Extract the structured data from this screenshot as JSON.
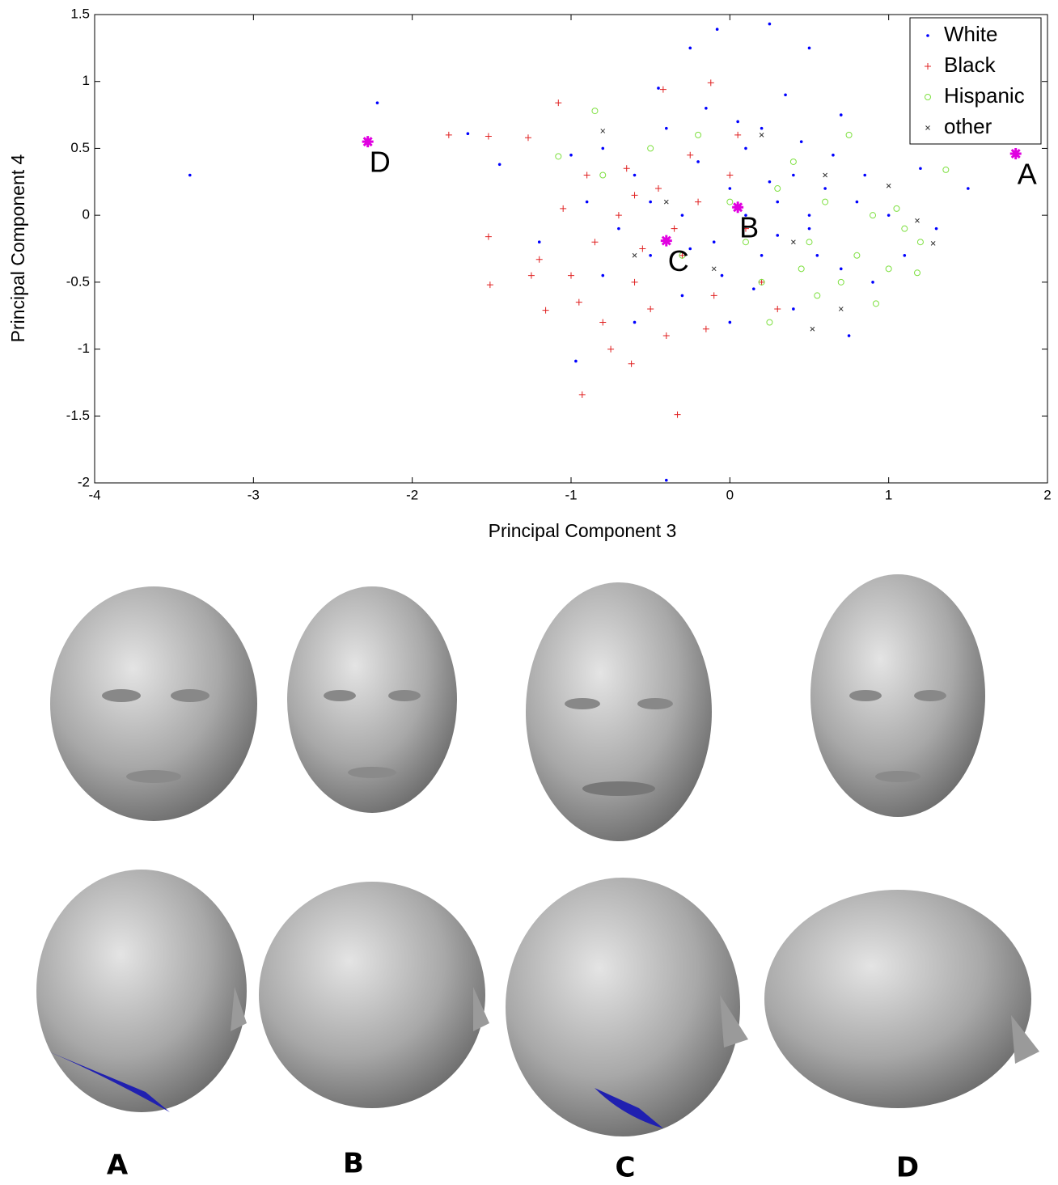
{
  "chart_data": {
    "type": "scatter",
    "xlabel": "Principal Component 3",
    "ylabel": "Principal Component 4",
    "xlim": [
      -4,
      2
    ],
    "ylim": [
      -2,
      1.5
    ],
    "xticks": [
      -4,
      -3,
      -2,
      -1,
      0,
      1,
      2
    ],
    "yticks": [
      -2,
      -1.5,
      -1,
      -0.5,
      0,
      0.5,
      1,
      1.5
    ],
    "legend": "upper right",
    "series": [
      {
        "name": "White",
        "color": "#0000ff",
        "marker": "dot",
        "x": [
          -3.4,
          -2.22,
          -1.65,
          -1.45,
          -0.97,
          -0.4,
          -0.25,
          -0.08,
          0.25,
          0.5,
          -0.8,
          -0.6,
          -0.5,
          -0.3,
          -0.2,
          -0.1,
          0,
          0.1,
          0.2,
          0.3,
          0.4,
          0.5,
          0.6,
          0.7,
          0.8,
          1.0,
          1.2,
          1.5,
          1.3,
          0.9,
          0.75,
          0.4,
          -0.3,
          -0.5,
          -0.7,
          -0.9,
          -1.2,
          -0.15,
          0.05,
          0.35,
          -0.4,
          0.55,
          0.15,
          -0.05,
          0.25,
          0.45,
          -0.6,
          0.65,
          1.1,
          0.85,
          -0.25,
          0.1,
          -0.8,
          0.3,
          -1.0,
          0.7,
          -0.45,
          0.0,
          0.5,
          0.2
        ],
        "y": [
          0.3,
          0.84,
          0.61,
          0.38,
          -1.09,
          -1.98,
          1.25,
          1.39,
          1.43,
          1.25,
          0.5,
          0.3,
          0.1,
          0.0,
          0.4,
          -0.2,
          0.2,
          0.5,
          -0.3,
          0.1,
          0.3,
          -0.1,
          0.2,
          -0.4,
          0.1,
          0.0,
          0.35,
          0.2,
          -0.1,
          -0.5,
          -0.9,
          -0.7,
          -0.6,
          -0.3,
          -0.1,
          0.1,
          -0.2,
          0.8,
          0.7,
          0.9,
          0.65,
          -0.3,
          -0.55,
          -0.45,
          0.25,
          0.55,
          -0.8,
          0.45,
          -0.3,
          0.3,
          -0.25,
          0.0,
          -0.45,
          -0.15,
          0.45,
          0.75,
          0.95,
          -0.8,
          0.0,
          0.65
        ]
      },
      {
        "name": "Black",
        "color": "#e02020",
        "marker": "plus",
        "x": [
          -1.77,
          -1.52,
          -1.27,
          -1.52,
          -1.51,
          -1.08,
          -0.93,
          -0.33,
          -0.62,
          -0.42,
          -0.12,
          -1.2,
          -1.16,
          -1.0,
          -0.85,
          -0.7,
          -0.6,
          -0.5,
          -0.4,
          -0.3,
          -0.2,
          -0.1,
          0.0,
          0.1,
          -0.8,
          -0.65,
          -0.9,
          -1.05,
          -0.45,
          -0.15,
          0.2,
          -0.35,
          -0.75,
          -0.55,
          0.05,
          -1.25,
          -0.95,
          -0.25,
          0.3,
          -0.6
        ],
        "y": [
          0.6,
          0.59,
          0.58,
          -0.16,
          -0.52,
          0.84,
          -1.34,
          -1.49,
          -1.11,
          0.94,
          0.99,
          -0.33,
          -0.71,
          -0.45,
          -0.2,
          0.0,
          -0.5,
          -0.7,
          -0.9,
          -0.3,
          0.1,
          -0.6,
          0.3,
          -0.1,
          -0.8,
          0.35,
          0.3,
          0.05,
          0.2,
          -0.85,
          -0.5,
          -0.1,
          -1.0,
          -0.25,
          0.6,
          -0.45,
          -0.65,
          0.45,
          -0.7,
          0.15
        ]
      },
      {
        "name": "Hispanic",
        "color": "#7ee040",
        "marker": "circle",
        "x": [
          -0.85,
          -1.08,
          1.36,
          0.2,
          0.3,
          0.5,
          0.6,
          0.7,
          0.8,
          0.9,
          1.0,
          1.1,
          1.2,
          1.18,
          0.92,
          0.55,
          0.4,
          0.25,
          0.1,
          -0.2,
          -0.5,
          -0.3,
          0.75,
          0.0,
          0.45,
          -0.8,
          1.05
        ],
        "y": [
          0.78,
          0.44,
          0.34,
          -0.5,
          0.2,
          -0.2,
          0.1,
          -0.5,
          -0.3,
          0.0,
          -0.4,
          -0.1,
          -0.2,
          -0.43,
          -0.66,
          -0.6,
          0.4,
          -0.8,
          -0.2,
          0.6,
          0.5,
          -0.3,
          0.6,
          0.1,
          -0.4,
          0.3,
          0.05
        ]
      },
      {
        "name": "other",
        "color": "#333333",
        "marker": "x",
        "x": [
          -0.8,
          1.0,
          1.28,
          1.18,
          0.52,
          0.2,
          -0.1,
          0.4,
          0.7,
          -0.4,
          0.6,
          -0.6
        ],
        "y": [
          0.63,
          0.22,
          -0.21,
          -0.04,
          -0.85,
          0.6,
          -0.4,
          -0.2,
          -0.7,
          0.1,
          0.3,
          -0.3
        ]
      }
    ],
    "annotations_color": "#e000e0",
    "annotations": [
      {
        "label": "A",
        "x": 1.8,
        "y": 0.46
      },
      {
        "label": "B",
        "x": 0.05,
        "y": 0.06
      },
      {
        "label": "C",
        "x": -0.4,
        "y": -0.19
      },
      {
        "label": "D",
        "x": -2.28,
        "y": 0.55
      }
    ]
  },
  "figure": {
    "panel_labels": [
      "A",
      "B",
      "C",
      "D"
    ]
  }
}
